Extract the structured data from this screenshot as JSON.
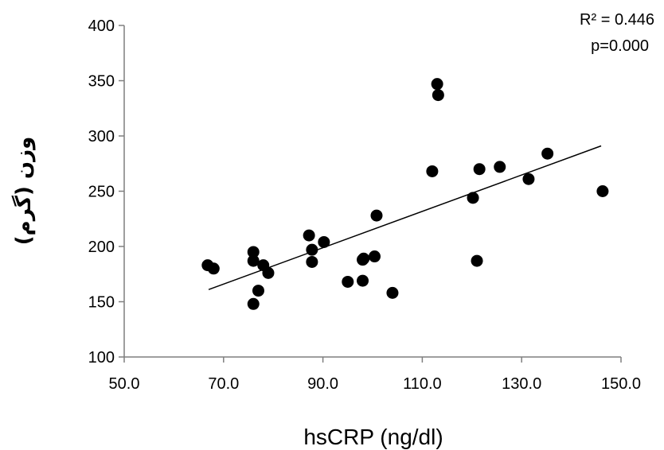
{
  "chart_data": {
    "type": "scatter",
    "xlabel": "hsCRP (ng/dl)",
    "ylabel": "وزن (گرم)",
    "xlim": [
      50,
      150
    ],
    "ylim": [
      100,
      400
    ],
    "x_ticks": [
      "50.0",
      "70.0",
      "90.0",
      "110.0",
      "130.0",
      "150.0"
    ],
    "y_ticks": [
      "100",
      "150",
      "200",
      "250",
      "300",
      "350",
      "400"
    ],
    "annotations": [
      "R² = 0.446",
      "p=0.000"
    ],
    "grid": false,
    "trendline": {
      "x": [
        67,
        146
      ],
      "y": [
        161,
        291
      ]
    },
    "points": [
      {
        "x": 66.8,
        "y": 183
      },
      {
        "x": 68.0,
        "y": 180
      },
      {
        "x": 76.0,
        "y": 195
      },
      {
        "x": 76.0,
        "y": 187
      },
      {
        "x": 76.0,
        "y": 148
      },
      {
        "x": 77.0,
        "y": 160
      },
      {
        "x": 78.0,
        "y": 183
      },
      {
        "x": 79.0,
        "y": 176
      },
      {
        "x": 87.2,
        "y": 210
      },
      {
        "x": 87.8,
        "y": 197
      },
      {
        "x": 87.8,
        "y": 186
      },
      {
        "x": 90.2,
        "y": 204
      },
      {
        "x": 95.0,
        "y": 168
      },
      {
        "x": 98.0,
        "y": 188
      },
      {
        "x": 98.2,
        "y": 189
      },
      {
        "x": 98.0,
        "y": 169
      },
      {
        "x": 100.4,
        "y": 191
      },
      {
        "x": 100.8,
        "y": 228
      },
      {
        "x": 104.0,
        "y": 158
      },
      {
        "x": 112.0,
        "y": 268
      },
      {
        "x": 113.0,
        "y": 347
      },
      {
        "x": 113.2,
        "y": 337
      },
      {
        "x": 120.2,
        "y": 244
      },
      {
        "x": 121.0,
        "y": 187
      },
      {
        "x": 121.5,
        "y": 270
      },
      {
        "x": 125.6,
        "y": 272
      },
      {
        "x": 131.4,
        "y": 261
      },
      {
        "x": 135.2,
        "y": 284
      },
      {
        "x": 146.3,
        "y": 250
      }
    ]
  }
}
